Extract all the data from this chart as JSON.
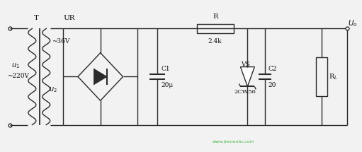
{
  "bg_color": "#f2f2f2",
  "line_color": "#2a2a2a",
  "line_width": 1.0,
  "text_color": "#111111",
  "watermark_color": "#22aa22",
  "figsize": [
    5.11,
    2.15
  ],
  "dpi": 100,
  "xlim": [
    0,
    5.11
  ],
  "ylim": [
    0,
    2.15
  ]
}
